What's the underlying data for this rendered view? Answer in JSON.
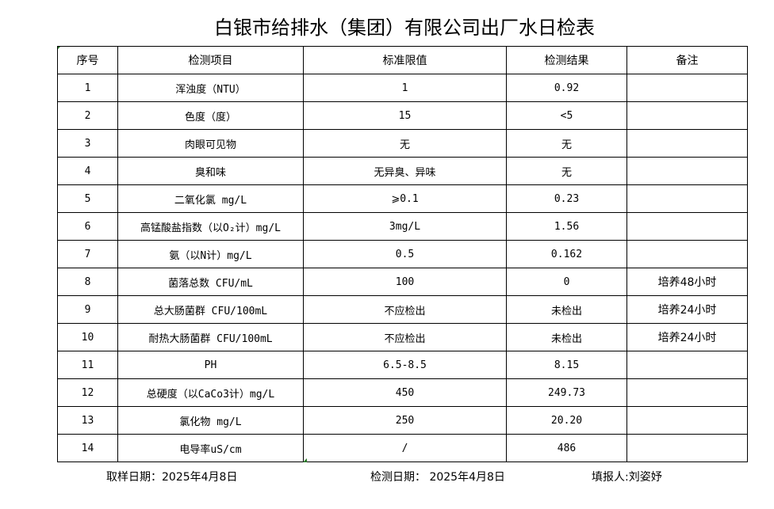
{
  "title": "白银市给排水（集团）有限公司出厂水日检表",
  "headers": [
    "序号",
    "检测项目",
    "标准限值",
    "检测结果",
    "备注"
  ],
  "rows": [
    [
      "1",
      "浑浊度（NTU）",
      "1",
      "0.92",
      ""
    ],
    [
      "2",
      "色度（度）",
      "15",
      "<5",
      ""
    ],
    [
      "3",
      "肉眼可见物",
      "无",
      "无",
      ""
    ],
    [
      "4",
      "臭和味",
      "无异臭、异味",
      "无",
      ""
    ],
    [
      "5",
      "二氧化氯 mg/L",
      "⩾0.1",
      "0.23",
      ""
    ],
    [
      "6",
      "高锰酸盐指数（以O₂计）mg/L",
      "3mg/L",
      "1.56",
      ""
    ],
    [
      "7",
      "氨（以N计）mg/L",
      "0.5",
      "0.162",
      ""
    ],
    [
      "8",
      "菌落总数 CFU/mL",
      "100",
      "0",
      "培养48小时"
    ],
    [
      "9",
      "总大肠菌群 CFU/100mL",
      "不应检出",
      "未检出",
      "培养24小时"
    ],
    [
      "10",
      "耐热大肠菌群 CFU/100mL",
      "不应检出",
      "未检出",
      "培养24小时"
    ],
    [
      "11",
      "PH",
      "6.5-8.5",
      "8.15",
      ""
    ],
    [
      "12",
      "总硬度（以CaCo3计）mg/L",
      "450",
      "249.73",
      ""
    ],
    [
      "13",
      "氯化物 mg/L",
      "250",
      "20.20",
      ""
    ],
    [
      "14",
      "电导率uS/cm",
      "/",
      "486",
      ""
    ]
  ],
  "footer": {
    "sample_date": "取样日期：2025年4月8日",
    "test_date": "检测日期： 2025年4月8日",
    "reporter": "填报人:刘姿妤"
  }
}
